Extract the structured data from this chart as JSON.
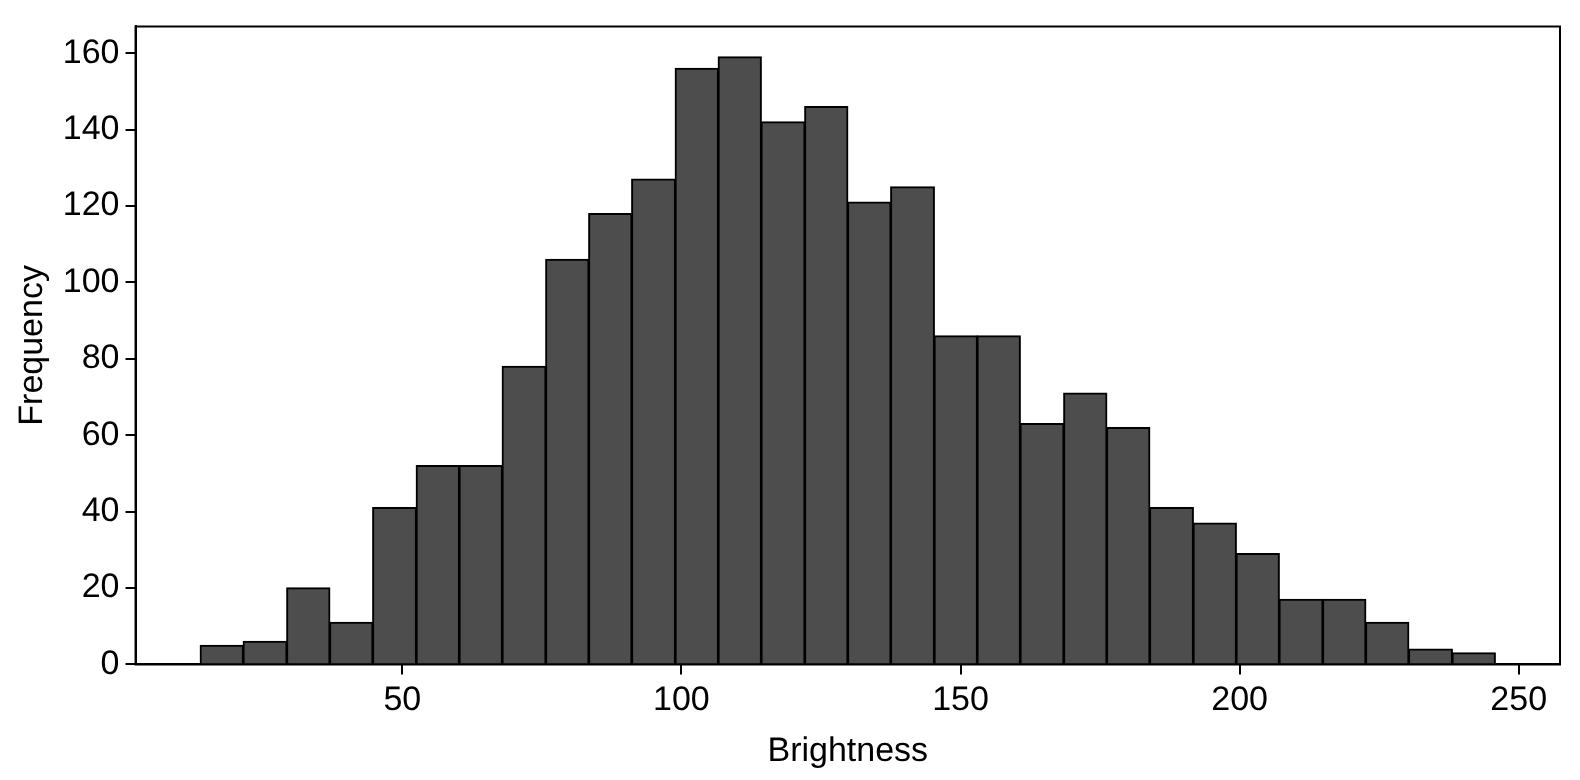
{
  "chart_data": {
    "type": "histogram",
    "xlabel": "Brightness",
    "ylabel": "Frequency",
    "bins": [
      13.8,
      21.5,
      29.3,
      37.0,
      44.7,
      52.5,
      60.2,
      67.9,
      75.7,
      83.4,
      91.1,
      98.9,
      106.6,
      114.3,
      122.1,
      129.8,
      137.5,
      145.3,
      153.0,
      160.7,
      168.5,
      176.2,
      183.9,
      191.7,
      199.4,
      207.1,
      214.9,
      222.6,
      230.3,
      238.1,
      245.8
    ],
    "values": [
      5,
      6,
      20,
      11,
      41,
      52,
      52,
      78,
      106,
      118,
      127,
      156,
      159,
      142,
      146,
      121,
      125,
      86,
      86,
      63,
      71,
      62,
      41,
      37,
      29,
      17,
      17,
      11,
      4,
      3
    ],
    "color": "#4d4d4d",
    "xlim": [
      2.2,
      257.4
    ],
    "xticks": [
      50,
      100,
      150,
      200,
      250
    ],
    "ylim": [
      0,
      167
    ],
    "yticks": [
      0,
      20,
      40,
      60,
      80,
      100,
      120,
      140,
      160
    ],
    "grid": false,
    "legend": false
  }
}
